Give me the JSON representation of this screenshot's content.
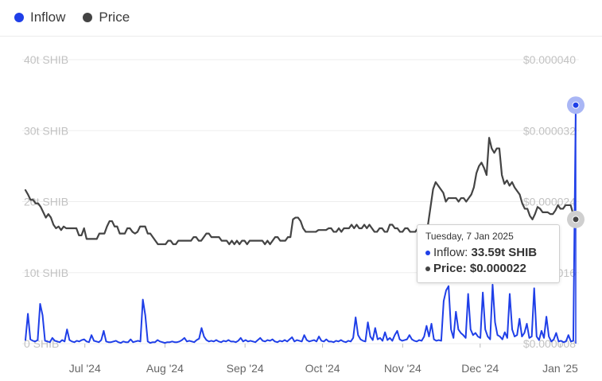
{
  "legend": [
    {
      "label": "Inflow",
      "color": "#1f3fe8"
    },
    {
      "label": "Price",
      "color": "#444444"
    }
  ],
  "tooltip": {
    "date": "Tuesday, 7 Jan 2025",
    "inflow_label": "Inflow:",
    "inflow_value": "33.59t SHIB",
    "price_label": "Price:",
    "price_value": "$0.000022"
  },
  "chart_data": {
    "type": "line",
    "x_range": [
      "2024-06-08",
      "2025-01-07"
    ],
    "x_ticks": [
      {
        "label": "Jul '24",
        "date": "2024-07-01"
      },
      {
        "label": "Aug '24",
        "date": "2024-08-01"
      },
      {
        "label": "Sep '24",
        "date": "2024-09-01"
      },
      {
        "label": "Oct '24",
        "date": "2024-10-01"
      },
      {
        "label": "Nov '24",
        "date": "2024-11-01"
      },
      {
        "label": "Dec '24",
        "date": "2024-12-01"
      },
      {
        "label": "Jan '25",
        "date": "2025-01-01"
      }
    ],
    "y_left": {
      "min": 0,
      "max": 40,
      "unit": "t SHIB",
      "ticks": [
        "0 SHIB",
        "10t SHIB",
        "20t SHIB",
        "30t SHIB",
        "40t SHIB"
      ]
    },
    "y_right": {
      "min": 8e-06,
      "max": 4e-05,
      "ticks": [
        "$0.000008",
        "$0.000016",
        "$0.000024",
        "$0.000032",
        "$0.000040"
      ]
    },
    "grid": true,
    "legend_position": "top-left",
    "series": [
      {
        "name": "Inflow",
        "axis": "left",
        "color": "#1f3fe8",
        "values": [
          0.5,
          4.2,
          0.6,
          0.4,
          0.3,
          0.5,
          5.6,
          4.0,
          0.4,
          0.3,
          0.2,
          0.8,
          0.4,
          0.3,
          0.2,
          0.5,
          0.3,
          2.0,
          0.5,
          0.3,
          0.2,
          0.4,
          0.3,
          0.5,
          0.6,
          0.3,
          0.2,
          1.2,
          0.4,
          0.3,
          0.2,
          0.5,
          1.8,
          0.3,
          0.2,
          0.2,
          0.3,
          0.4,
          0.2,
          0.1,
          0.3,
          0.2,
          0.2,
          0.6,
          0.2,
          0.3,
          0.4,
          0.3,
          6.2,
          4.0,
          0.3,
          0.1,
          0.2,
          0.2,
          0.5,
          0.3,
          0.2,
          0.1,
          0.2,
          0.2,
          0.3,
          0.2,
          0.2,
          0.3,
          0.5,
          0.8,
          0.3,
          0.4,
          0.3,
          0.2,
          0.5,
          0.7,
          2.2,
          1.0,
          0.5,
          0.3,
          0.4,
          0.3,
          0.5,
          0.3,
          0.2,
          0.4,
          0.3,
          0.5,
          0.3,
          0.3,
          0.2,
          0.4,
          0.8,
          0.3,
          0.5,
          0.3,
          0.4,
          0.3,
          0.2,
          0.5,
          0.8,
          0.4,
          0.3,
          0.5,
          0.4,
          0.6,
          0.3,
          0.2,
          0.4,
          0.3,
          0.5,
          0.3,
          0.6,
          0.9,
          0.3,
          0.5,
          0.4,
          0.3,
          1.2,
          0.5,
          0.3,
          0.4,
          0.5,
          0.3,
          1.0,
          0.4,
          0.3,
          0.6,
          0.3,
          0.3,
          0.2,
          0.4,
          0.3,
          0.5,
          0.3,
          0.2,
          0.4,
          0.3,
          0.8,
          3.7,
          1.2,
          0.6,
          0.4,
          0.3,
          3.0,
          1.0,
          0.5,
          2.2,
          0.6,
          0.8,
          0.4,
          1.6,
          0.5,
          0.8,
          0.4,
          1.2,
          1.8,
          0.6,
          0.4,
          0.5,
          0.6,
          1.2,
          0.6,
          0.4,
          0.3,
          0.5,
          0.4,
          1.0,
          2.5,
          1.0,
          2.8,
          0.6,
          0.4,
          0.5,
          0.4,
          6.0,
          7.5,
          8.1,
          2.0,
          0.8,
          4.5,
          2.0,
          1.5,
          1.2,
          0.8,
          7.0,
          2.0,
          1.2,
          1.5,
          1.0,
          0.8,
          7.2,
          2.0,
          1.0,
          0.6,
          8.3,
          3.0,
          1.2,
          1.0,
          0.6,
          1.6,
          0.8,
          7.0,
          2.0,
          1.0,
          1.2,
          3.5,
          1.0,
          1.5,
          2.8,
          0.8,
          1.0,
          7.8,
          1.0,
          0.5,
          1.8,
          0.8,
          3.8,
          1.0,
          0.3,
          0.6,
          1.5,
          0.3,
          0.4,
          0.2,
          0.3,
          1.2,
          0.3,
          0.4,
          33.59
        ]
      },
      {
        "name": "Price",
        "axis": "right",
        "color": "#444444",
        "values": [
          2.53e-05,
          2.48e-05,
          2.42e-05,
          2.42e-05,
          2.38e-05,
          2.38e-05,
          2.34e-05,
          2.28e-05,
          2.22e-05,
          2.26e-05,
          2.22e-05,
          2.14e-05,
          2.1e-05,
          2.12e-05,
          2.08e-05,
          2.12e-05,
          2.1e-05,
          2.1e-05,
          2.1e-05,
          2.1e-05,
          2.1e-05,
          2.02e-05,
          2.02e-05,
          2.1e-05,
          1.98e-05,
          1.98e-05,
          1.98e-05,
          1.98e-05,
          1.98e-05,
          2.04e-05,
          2.04e-05,
          2.04e-05,
          2.12e-05,
          2.18e-05,
          2.18e-05,
          2.12e-05,
          2.12e-05,
          2.04e-05,
          2.04e-05,
          2.04e-05,
          2.1e-05,
          2.1e-05,
          2.06e-05,
          2.04e-05,
          2.06e-05,
          2.12e-05,
          2.12e-05,
          2.12e-05,
          2.04e-05,
          2.04e-05,
          2e-05,
          1.96e-05,
          1.92e-05,
          1.92e-05,
          1.92e-05,
          1.92e-05,
          1.96e-05,
          1.96e-05,
          1.92e-05,
          1.92e-05,
          1.96e-05,
          1.96e-05,
          1.96e-05,
          1.96e-05,
          1.96e-05,
          1.96e-05,
          2e-05,
          2e-05,
          1.96e-05,
          1.96e-05,
          2e-05,
          2.04e-05,
          2.04e-05,
          2e-05,
          2e-05,
          2e-05,
          2e-05,
          1.96e-05,
          1.96e-05,
          1.96e-05,
          1.92e-05,
          1.96e-05,
          1.92e-05,
          1.96e-05,
          1.92e-05,
          1.96e-05,
          1.96e-05,
          1.92e-05,
          1.96e-05,
          1.96e-05,
          1.96e-05,
          1.96e-05,
          1.96e-05,
          1.96e-05,
          1.92e-05,
          1.96e-05,
          1.92e-05,
          1.96e-05,
          2e-05,
          2e-05,
          1.96e-05,
          1.96e-05,
          1.96e-05,
          2e-05,
          2e-05,
          2.2e-05,
          2.22e-05,
          2.22e-05,
          2.18e-05,
          2.1e-05,
          2.06e-05,
          2.06e-05,
          2.06e-05,
          2.06e-05,
          2.06e-05,
          2.08e-05,
          2.08e-05,
          2.08e-05,
          2.08e-05,
          2.1e-05,
          2.1e-05,
          2.06e-05,
          2.06e-05,
          2.1e-05,
          2.06e-05,
          2.1e-05,
          2.1e-05,
          2.1e-05,
          2.14e-05,
          2.1e-05,
          2.14e-05,
          2.1e-05,
          2.1e-05,
          2.14e-05,
          2.1e-05,
          2.14e-05,
          2.1e-05,
          2.06e-05,
          2.06e-05,
          2.1e-05,
          2.1e-05,
          2.06e-05,
          2.06e-05,
          2.14e-05,
          2.14e-05,
          2.1e-05,
          2.1e-05,
          2.06e-05,
          2.06e-05,
          2.1e-05,
          2.1e-05,
          2.06e-05,
          2.06e-05,
          2.06e-05,
          2.1e-05,
          2.06e-05,
          2.06e-05,
          2.06e-05,
          2.14e-05,
          2.34e-05,
          2.54e-05,
          2.62e-05,
          2.58e-05,
          2.54e-05,
          2.5e-05,
          2.4e-05,
          2.44e-05,
          2.44e-05,
          2.44e-05,
          2.44e-05,
          2.4e-05,
          2.44e-05,
          2.44e-05,
          2.4e-05,
          2.44e-05,
          2.48e-05,
          2.56e-05,
          2.72e-05,
          2.8e-05,
          2.84e-05,
          2.78e-05,
          2.7e-05,
          3.12e-05,
          3e-05,
          2.95e-05,
          3e-05,
          3e-05,
          2.7e-05,
          2.6e-05,
          2.64e-05,
          2.58e-05,
          2.62e-05,
          2.56e-05,
          2.52e-05,
          2.48e-05,
          2.38e-05,
          2.32e-05,
          2.32e-05,
          2.24e-05,
          2.2e-05,
          2.26e-05,
          2.34e-05,
          2.32e-05,
          2.28e-05,
          2.28e-05,
          2.28e-05,
          2.26e-05,
          2.26e-05,
          2.3e-05,
          2.36e-05,
          2.32e-05,
          2.32e-05,
          2.36e-05,
          2.36e-05,
          2.36e-05,
          2.26e-05,
          2.2e-05
        ]
      }
    ]
  }
}
